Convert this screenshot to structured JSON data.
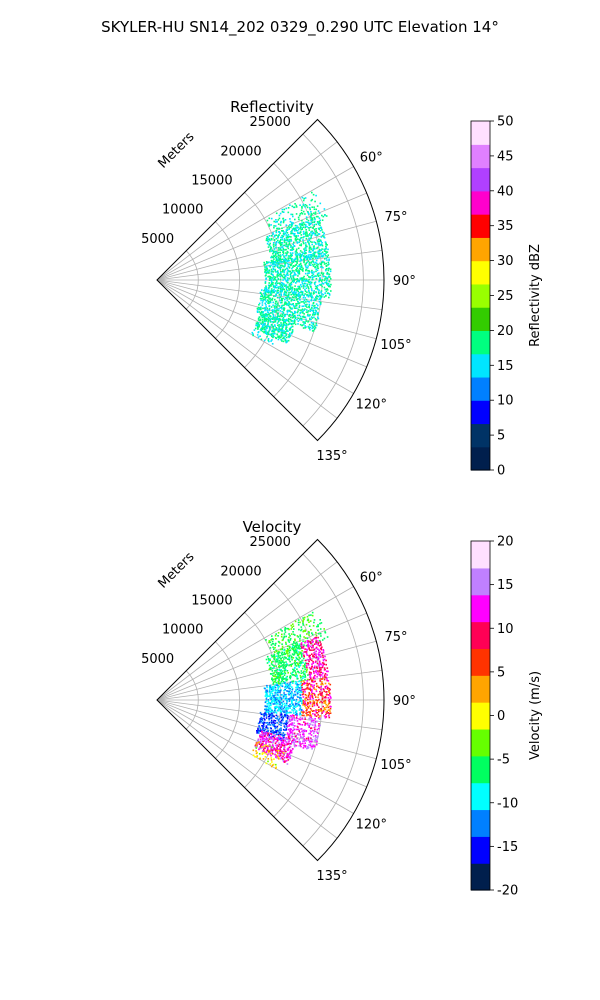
{
  "figure_title": "SKYLER-HU  SN14_202  0329_0.290 UTC Elevation 14°",
  "panels": [
    {
      "title": "Reflectivity",
      "range_unit_label": "Meters"
    },
    {
      "title": "Velocity",
      "range_unit_label": "Meters"
    }
  ],
  "chart_data": [
    {
      "type": "heatmap",
      "projection": "polar-sector",
      "title": "Reflectivity",
      "range_label": "Meters",
      "range_ticks": [
        "5000",
        "10000",
        "15000",
        "20000",
        "25000"
      ],
      "range_tick_values": [
        5000,
        10000,
        15000,
        20000,
        25000
      ],
      "range_max": 27500,
      "azimuth_range_deg": [
        45,
        135
      ],
      "azimuth_ticks": [
        "60°",
        "75°",
        "90°",
        "105°",
        "120°",
        "135°"
      ],
      "azimuth_tick_values": [
        60,
        75,
        90,
        105,
        120,
        135
      ],
      "grid": true,
      "colorbar": {
        "label": "Reflectivity dBZ",
        "min": 0,
        "max": 50,
        "ticks": [
          "0",
          "5",
          "10",
          "15",
          "20",
          "25",
          "30",
          "35",
          "40",
          "45",
          "50"
        ],
        "tick_values": [
          0,
          5,
          10,
          15,
          20,
          25,
          30,
          35,
          40,
          45,
          50
        ]
      },
      "echo_regions": [
        {
          "az": [
            60,
            70
          ],
          "range": [
            15000,
            22000
          ],
          "value": [
            14,
            20
          ],
          "density": 0.25
        },
        {
          "az": [
            68,
            82
          ],
          "range": [
            14000,
            21000
          ],
          "value": [
            14,
            20
          ],
          "density": 0.55
        },
        {
          "az": [
            80,
            96
          ],
          "range": [
            13000,
            21000
          ],
          "value": [
            14,
            20
          ],
          "density": 0.55
        },
        {
          "az": [
            95,
            108
          ],
          "range": [
            12500,
            20000
          ],
          "value": [
            14,
            20
          ],
          "density": 0.5
        },
        {
          "az": [
            107,
            116
          ],
          "range": [
            13000,
            17500
          ],
          "value": [
            14,
            20
          ],
          "density": 0.6
        },
        {
          "az": [
            114,
            120
          ],
          "range": [
            13000,
            16000
          ],
          "value": [
            14,
            18
          ],
          "density": 0.2
        }
      ]
    },
    {
      "type": "heatmap",
      "projection": "polar-sector",
      "title": "Velocity",
      "range_label": "Meters",
      "range_ticks": [
        "5000",
        "10000",
        "15000",
        "20000",
        "25000"
      ],
      "range_tick_values": [
        5000,
        10000,
        15000,
        20000,
        25000
      ],
      "range_max": 27500,
      "azimuth_range_deg": [
        45,
        135
      ],
      "azimuth_ticks": [
        "60°",
        "75°",
        "90°",
        "105°",
        "120°",
        "135°"
      ],
      "azimuth_tick_values": [
        60,
        75,
        90,
        105,
        120,
        135
      ],
      "grid": true,
      "colorbar": {
        "label": "Velocity (m/s)",
        "min": -20,
        "max": 20,
        "ticks": [
          "-20",
          "-15",
          "-10",
          "-5",
          "0",
          "5",
          "10",
          "15",
          "20"
        ],
        "tick_values": [
          -20,
          -15,
          -10,
          -5,
          0,
          5,
          10,
          15,
          20
        ]
      },
      "echo_regions": [
        {
          "az": [
            60,
            70
          ],
          "range": [
            15000,
            22000
          ],
          "value": [
            -7,
            -3
          ],
          "density": 0.25
        },
        {
          "az": [
            68,
            82
          ],
          "range": [
            14000,
            18500
          ],
          "value": [
            -8,
            -4
          ],
          "density": 0.55
        },
        {
          "az": [
            68,
            82
          ],
          "range": [
            18500,
            21000
          ],
          "value": [
            8,
            14
          ],
          "density": 0.5
        },
        {
          "az": [
            82,
            96
          ],
          "range": [
            13000,
            17500
          ],
          "value": [
            -12,
            -9
          ],
          "density": 0.55
        },
        {
          "az": [
            82,
            96
          ],
          "range": [
            17500,
            21000
          ],
          "value": [
            2,
            13
          ],
          "density": 0.55
        },
        {
          "az": [
            96,
            108
          ],
          "range": [
            12500,
            16000
          ],
          "value": [
            -16,
            -12
          ],
          "density": 0.5
        },
        {
          "az": [
            96,
            108
          ],
          "range": [
            16000,
            20000
          ],
          "value": [
            10,
            16
          ],
          "density": 0.5
        },
        {
          "az": [
            106,
            116
          ],
          "range": [
            13000,
            17500
          ],
          "value": [
            9,
            15
          ],
          "density": 0.6
        },
        {
          "az": [
            112,
            120
          ],
          "range": [
            13000,
            16500
          ],
          "value": [
            -2,
            4
          ],
          "density": 0.2
        }
      ]
    }
  ],
  "colors": {
    "reflectivity_stops": [
      "#001f4d",
      "#003366",
      "#0000ff",
      "#0080ff",
      "#00e5ff",
      "#00ff80",
      "#33cc00",
      "#99ff00",
      "#ffff00",
      "#ffa500",
      "#ff0000",
      "#ff00cc",
      "#b040ff",
      "#e080ff",
      "#ffe0ff"
    ],
    "velocity_stops": [
      "#001f4d",
      "#0000ff",
      "#0080ff",
      "#00ffff",
      "#00ff60",
      "#66ff00",
      "#ffff00",
      "#ffa500",
      "#ff3300",
      "#ff0055",
      "#ff00ff",
      "#c080ff",
      "#ffe0ff"
    ],
    "grid": "#b0b0b0",
    "axis": "#000000"
  }
}
